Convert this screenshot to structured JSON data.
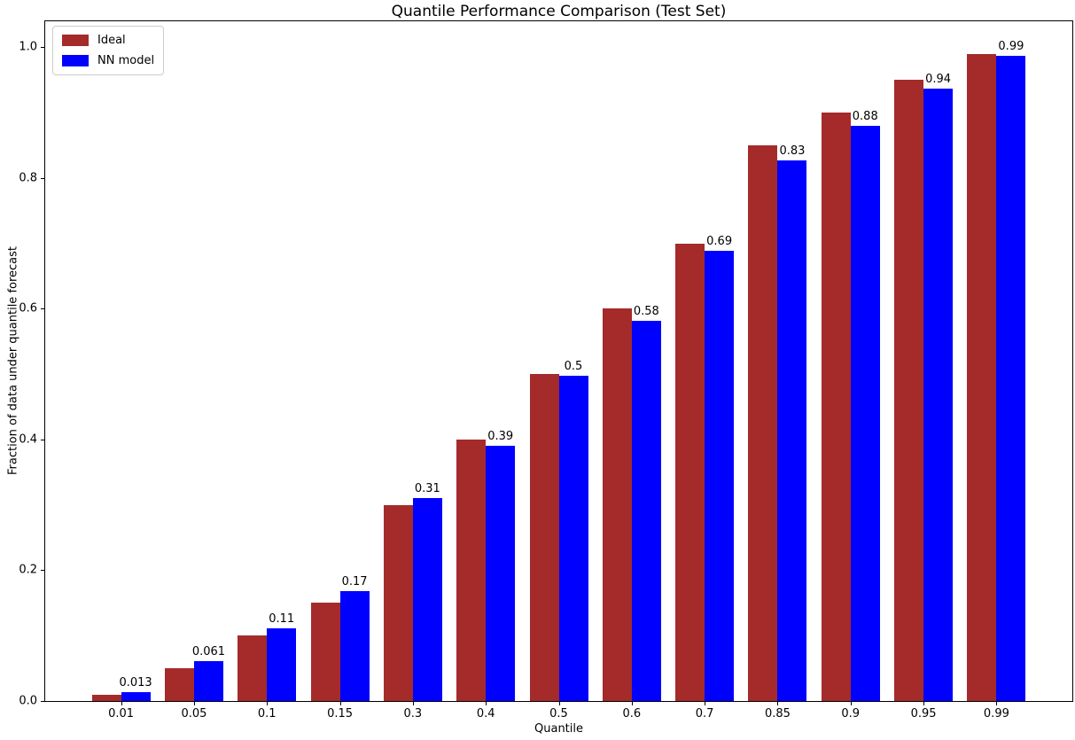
{
  "chart_data": {
    "type": "bar",
    "title": "Quantile Performance Comparison (Test Set)",
    "xlabel": "Quantile",
    "ylabel": "Fraction of data under quantile forecast",
    "categories": [
      "0.01",
      "0.05",
      "0.1",
      "0.15",
      "0.3",
      "0.4",
      "0.5",
      "0.6",
      "0.7",
      "0.85",
      "0.9",
      "0.95",
      "0.99"
    ],
    "series": [
      {
        "name": "Ideal",
        "color": "#a52a2a",
        "values": [
          0.01,
          0.05,
          0.1,
          0.15,
          0.3,
          0.4,
          0.5,
          0.6,
          0.7,
          0.85,
          0.9,
          0.95,
          0.99
        ]
      },
      {
        "name": "NN model",
        "color": "#0000ff",
        "values": [
          0.013,
          0.061,
          0.111,
          0.168,
          0.31,
          0.39,
          0.497,
          0.581,
          0.688,
          0.827,
          0.879,
          0.937,
          0.987
        ],
        "labels": [
          "0.013",
          "0.061",
          "0.11",
          "0.17",
          "0.31",
          "0.39",
          "0.5",
          "0.58",
          "0.69",
          "0.83",
          "0.88",
          "0.94",
          "0.99"
        ]
      }
    ],
    "value_labels_on_series": "NN model",
    "yticks": [
      "0.0",
      "0.2",
      "0.4",
      "0.6",
      "0.8",
      "1.0"
    ],
    "ylim": [
      0,
      1.0395
    ],
    "grid": false,
    "legend_position": "upper left",
    "axis_color": "#000000",
    "background_color": "#ffffff"
  }
}
